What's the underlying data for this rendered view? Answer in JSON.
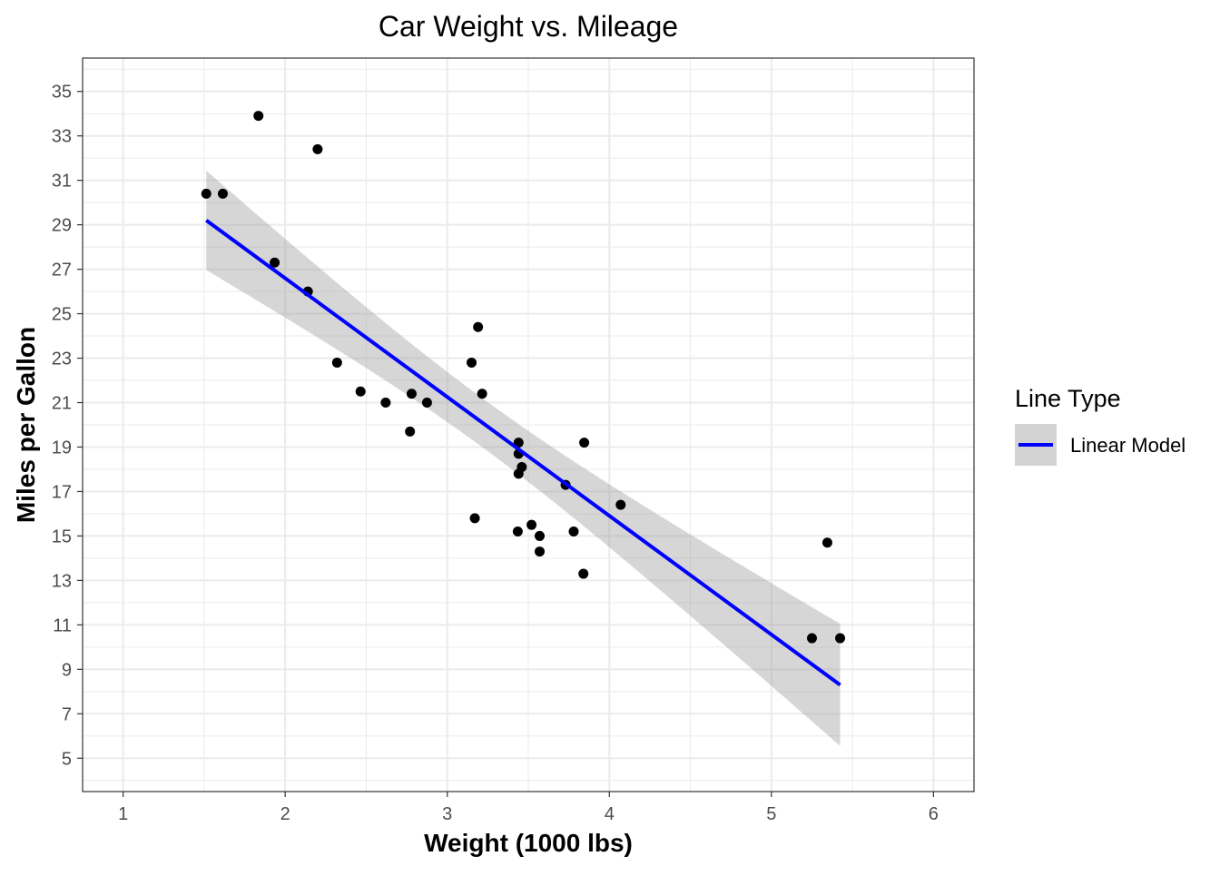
{
  "chart_data": {
    "type": "scatter",
    "title": "Car Weight vs. Mileage",
    "xlabel": "Weight (1000 lbs)",
    "ylabel": "Miles per Gallon",
    "xlim": [
      0.75,
      6.25
    ],
    "ylim": [
      3.5,
      36.5
    ],
    "x_ticks": [
      1,
      2,
      3,
      4,
      5,
      6
    ],
    "y_ticks": [
      5,
      7,
      9,
      11,
      13,
      15,
      17,
      19,
      21,
      23,
      25,
      27,
      29,
      31,
      33,
      35
    ],
    "grid": true,
    "points": {
      "x": [
        2.62,
        2.875,
        2.32,
        3.215,
        3.44,
        3.46,
        3.57,
        3.19,
        3.15,
        3.44,
        3.44,
        4.07,
        3.73,
        3.78,
        5.25,
        5.424,
        5.345,
        2.2,
        1.615,
        1.835,
        2.465,
        3.52,
        3.435,
        3.84,
        3.845,
        1.935,
        2.14,
        1.513,
        3.17,
        2.77,
        3.57,
        2.78
      ],
      "y": [
        21.0,
        21.0,
        22.8,
        21.4,
        18.7,
        18.1,
        14.3,
        24.4,
        22.8,
        19.2,
        17.8,
        16.4,
        17.3,
        15.2,
        10.4,
        10.4,
        14.7,
        32.4,
        30.4,
        33.9,
        21.5,
        15.5,
        15.2,
        13.3,
        19.2,
        27.3,
        26.0,
        30.4,
        15.8,
        19.7,
        15.0,
        21.4
      ]
    },
    "fit": {
      "method": "lm",
      "intercept": 37.285,
      "slope": -5.344,
      "residual_se": 3.046,
      "n": 32,
      "x_mean": 3.217,
      "sxx": 29.68,
      "t_crit": 2.042,
      "x_range": [
        1.513,
        5.424
      ],
      "line_color": "#0000FF",
      "band_color": "#999999"
    },
    "legend": {
      "title": "Line Type",
      "entries": [
        "Linear Model"
      ],
      "placement": "right"
    }
  }
}
